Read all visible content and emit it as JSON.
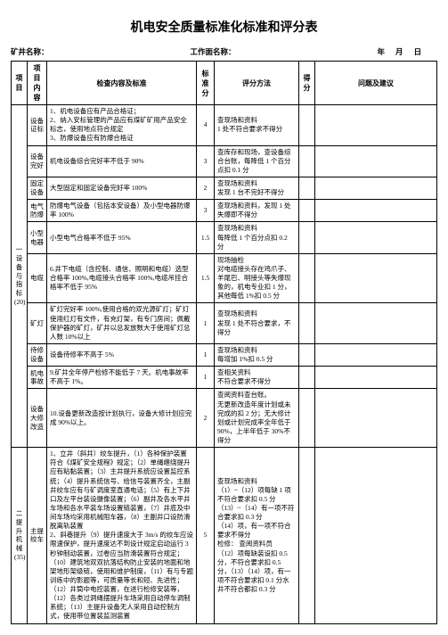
{
  "title": "机电安全质量标准化标准和评分表",
  "header": {
    "label1": "矿井名称：",
    "label2": "工作面名称：",
    "date_y": "年",
    "date_m": "月",
    "date_d": "日"
  },
  "columns": {
    "c1": "项目",
    "c2": "项目内容",
    "c3": "检查内容及标准",
    "c4": "标准分",
    "c5": "评分方法",
    "c6": "得分",
    "c7": "问题及建议"
  },
  "cat1": "一设备与指标(20)",
  "cat2": "二提升机械(35)",
  "rows": [
    {
      "item": "设备证标",
      "content": "1、机电设备应有产品合格证；\n2、纳入安标管理的产品应有煤矿矿用产品安全标志，使用地点符合规定\n3、防爆设备应有防爆合格证",
      "std": "4",
      "method": "查现场和资料\n1 处不符合要求不得分"
    },
    {
      "item": "设备完好",
      "content": "机电设备综合完好率不低于 90%",
      "std": "3",
      "method": "查库存和现场，查设备综合台账，每降低 1 个百分点扣 0.1 分"
    },
    {
      "item": "固定设备",
      "content": "大型固定和固定设备完好率 100%",
      "std": "2",
      "method": "查现场和资料\n发现 1 台不完好不得分"
    },
    {
      "item": "电气防爆",
      "content": "防爆电气设备（包括本安设备）及小型电器防爆率 100%",
      "std": "3",
      "method": "查现场和资料，发现 1 处失爆即不得分"
    },
    {
      "item": "小型电器",
      "content": "小型电气合格率不低于 95%",
      "std": "1.5",
      "method": "查现场和资料\n每降低 1 个百分点扣 0.2 分"
    },
    {
      "item": "电缆",
      "content": "6.井下电缆（含控制、通信、照明和电缆）选型合格率 100%,电缆接头合格率 100%,电缆吊挂合格率不低于 95%",
      "std": "1.5",
      "method": "现场抽检\n对电缆接头存在鸡爪子、羊尾巴、明接头等失爆现象的，机电专业扣 1 分，其他每低 1%扣 0.5 分"
    },
    {
      "item": "矿灯",
      "content": "矿灯完好率 100%,使用合格的双光源矿灯；矿灯使用红灯有文件，有充灯架，有专门房间；佩戴保护器的矿灯，矿井以总发放数大于使用矿灯总人数 10%以上",
      "std": "1",
      "method": "查现场和资料\n发现 1 处不符合要求，不得分"
    },
    {
      "item": "待修设备",
      "content": "设备待修率不高于 5%",
      "std": "1",
      "method": "查现场和资料\n每增加 1%扣 0.5 分"
    },
    {
      "item": "机电事故",
      "content": "9.矿井全年停产检修不能低于 7 天。机电事故率不高于 1%。",
      "std": "1",
      "method": "查相关资料\n不符合要求不得分"
    },
    {
      "item": "设备大修改造",
      "content": "10.设备更新改造按计划执行，设备大修计划应完成 90%以上。",
      "std": "2",
      "method": "查阅资料查台账。\n无更新改造年度计划或未完成的扣 2 分；无大修计划或计划完成率全年低于 90%，上半年低于 30%不得分"
    },
    {
      "item": "主提绞车",
      "content": "1、立井（斜井）绞车提升，（1）各种保护装置符合《煤矿安全规程》规定；（2）单绳缠绕提升应有粘黏装置；（3）主井提升系统应设置监控系统；（4）提升系统信号、给信号装置齐全，主副井绞车应有与矿调度室直通电话；（5）有上下井口及左平台装设摄像装置；（6）副井及各水平井车场和各水平装车场设置链装置，（7）井底及中间车场均采用机械阻车器，（8）主副井口设防滑脱离轨装置\n2、斜巷提升（9）提升速度大于 3m/s 的绞车应设限速保护，提升速度达不到设计规定启动运行 3 秒钟制动装置，过卷应当防滑装置符合规定；（10）建筑地双双抗落结构防止安装的地面和地架地形架级链，使用和维护制度，（11）有与专题训练中的影题等，可质量等长和短、先进性；（12）井筒中电控装置，在进行检修安装等，（12）各类过洞绳摆提升车场采用自动停车调制系统；（13）主提升设备无人采用自动控制方式，使用带位置装监测装置",
      "std": "5",
      "method": "查现场和资料\n（1）~（12）项每缺 1 项不符合要求扣 0.5 分\n（13）~（14）有一项不符合要求扣 0.3 分\n（14）项，有一项不符合要求不得分\n检修：        查阅资料员\n（12）项每缺装设扣 0.5 分，不符合要求扣 0.5 分，（13）（14）项，有一项不符合要求扣 0.1 分水井不符合都扣 0.3 分"
    }
  ]
}
